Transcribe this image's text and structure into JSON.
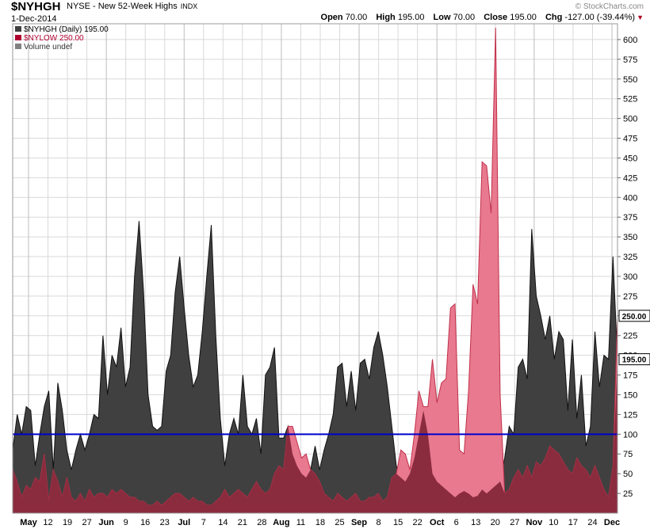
{
  "header": {
    "symbol": "$NYHGH",
    "description": "NYSE - New 52-Week Highs",
    "type": "INDX",
    "date": "1-Dec-2014",
    "brand": "© StockCharts.com",
    "open_label": "Open",
    "open": "70.00",
    "high_label": "High",
    "high": "195.00",
    "low_label": "Low",
    "low": "70.00",
    "close_label": "Close",
    "close": "195.00",
    "chg_label": "Chg",
    "chg": "-127.00 (-39.44%)"
  },
  "legend": {
    "nyhgh": "$NYHGH (Daily) 195.00",
    "nylow": "$NYLOW 250.00",
    "volume": "Volume undef"
  },
  "colors": {
    "highs_fill": "#404040",
    "lows_fill": "#e8798f",
    "overlap_fill": "#8b2c3e",
    "reference_line": "#0000cc",
    "grid": "#d9d9d9"
  },
  "chart_data": {
    "type": "area",
    "ylim": [
      0,
      620
    ],
    "yticks": [
      25,
      50,
      75,
      100,
      125,
      150,
      175,
      200,
      225,
      250,
      275,
      300,
      325,
      350,
      375,
      400,
      425,
      450,
      475,
      500,
      525,
      550,
      575,
      600
    ],
    "x_tick_labels": [
      "May",
      "12",
      "19",
      "27",
      "Jun",
      "9",
      "16",
      "23",
      "Jul",
      "7",
      "14",
      "21",
      "28",
      "Aug",
      "11",
      "18",
      "25",
      "Sep",
      "8",
      "15",
      "22",
      "Oct",
      "6",
      "13",
      "20",
      "27",
      "Nov",
      "10",
      "17",
      "24",
      "Dec"
    ],
    "reference_line": 100,
    "last_value_flags": [
      {
        "series": "$NYLOW",
        "value": "250.00"
      },
      {
        "series": "$NYHGH",
        "value": "195.00"
      }
    ],
    "series": [
      {
        "name": "$NYHGH",
        "values": [
          80,
          125,
          100,
          135,
          130,
          60,
          100,
          135,
          155,
          55,
          165,
          130,
          80,
          55,
          80,
          100,
          80,
          100,
          125,
          120,
          225,
          150,
          200,
          185,
          235,
          160,
          185,
          300,
          370,
          280,
          150,
          110,
          105,
          110,
          180,
          200,
          280,
          325,
          260,
          200,
          160,
          175,
          230,
          300,
          365,
          225,
          120,
          60,
          100,
          120,
          100,
          175,
          110,
          100,
          120,
          75,
          175,
          185,
          210,
          95,
          95,
          110,
          75,
          60,
          50,
          45,
          55,
          85,
          55,
          80,
          100,
          125,
          185,
          190,
          135,
          180,
          130,
          190,
          195,
          170,
          210,
          230,
          200,
          160,
          110,
          60,
          45,
          40,
          50,
          70,
          100,
          130,
          100,
          50,
          40,
          35,
          30,
          25,
          20,
          25,
          28,
          25,
          20,
          22,
          30,
          25,
          30,
          35,
          40,
          70,
          110,
          100,
          185,
          195,
          170,
          360,
          275,
          250,
          220,
          250,
          195,
          230,
          220,
          130,
          220,
          120,
          175,
          85,
          110,
          230,
          160,
          200,
          195,
          325,
          195
        ]
      },
      {
        "name": "$NYLOW",
        "values": [
          55,
          40,
          20,
          35,
          30,
          45,
          40,
          75,
          15,
          55,
          40,
          20,
          45,
          20,
          15,
          25,
          15,
          30,
          20,
          25,
          25,
          20,
          30,
          25,
          30,
          25,
          20,
          20,
          15,
          15,
          10,
          10,
          15,
          10,
          15,
          20,
          25,
          25,
          20,
          15,
          20,
          15,
          15,
          10,
          10,
          15,
          20,
          30,
          20,
          25,
          30,
          25,
          20,
          30,
          40,
          30,
          25,
          30,
          50,
          60,
          55,
          110,
          110,
          90,
          70,
          75,
          55,
          50,
          40,
          25,
          20,
          15,
          25,
          20,
          15,
          20,
          25,
          15,
          15,
          20,
          20,
          25,
          15,
          20,
          45,
          50,
          80,
          75,
          55,
          100,
          155,
          135,
          135,
          195,
          140,
          165,
          170,
          260,
          265,
          80,
          75,
          155,
          290,
          265,
          445,
          440,
          380,
          615,
          150,
          25,
          30,
          45,
          55,
          45,
          60,
          45,
          65,
          60,
          70,
          85,
          80,
          75,
          65,
          55,
          50,
          70,
          60,
          55,
          45,
          60,
          45,
          30,
          20,
          60,
          250
        ]
      }
    ]
  }
}
